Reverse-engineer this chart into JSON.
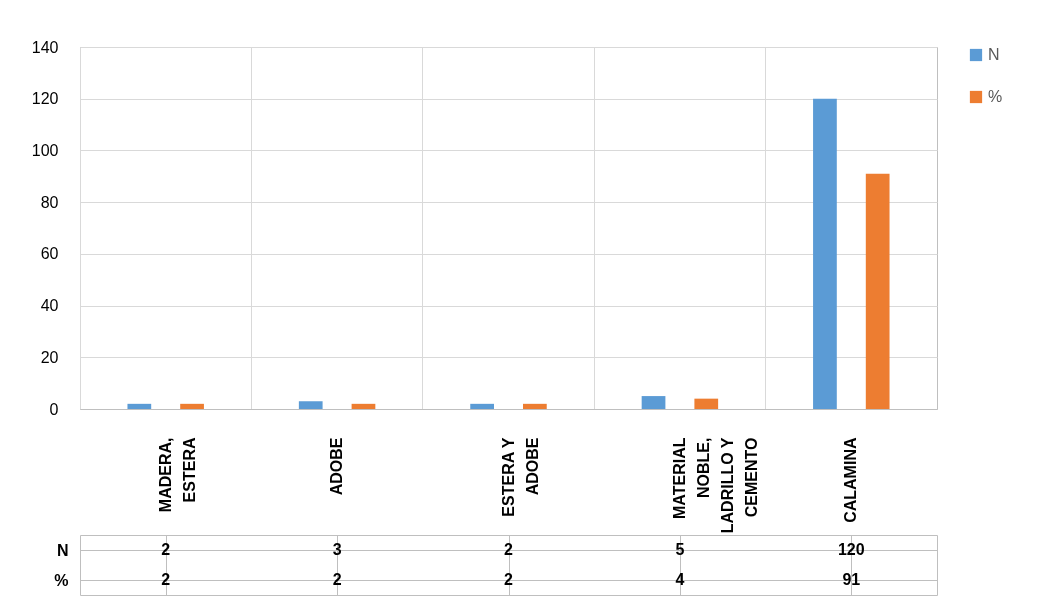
{
  "chart_data": {
    "type": "bar",
    "categories": [
      "MADERA, ESTERA",
      "ADOBE",
      "ESTERA Y ADOBE",
      "MATERIAL NOBLE, LADRILLO Y CEMENTO",
      "CALAMINA"
    ],
    "series": [
      {
        "name": "N",
        "color": "#5b9bd5",
        "values": [
          2,
          3,
          2,
          5,
          120
        ]
      },
      {
        "name": "%",
        "color": "#ed7d31",
        "values": [
          2,
          2,
          2,
          4,
          91
        ]
      }
    ],
    "ylim": [
      0,
      140
    ],
    "yticks": [
      0,
      20,
      40,
      60,
      80,
      100,
      120,
      140
    ],
    "grid": true,
    "legend": "right",
    "data_labels": true
  }
}
